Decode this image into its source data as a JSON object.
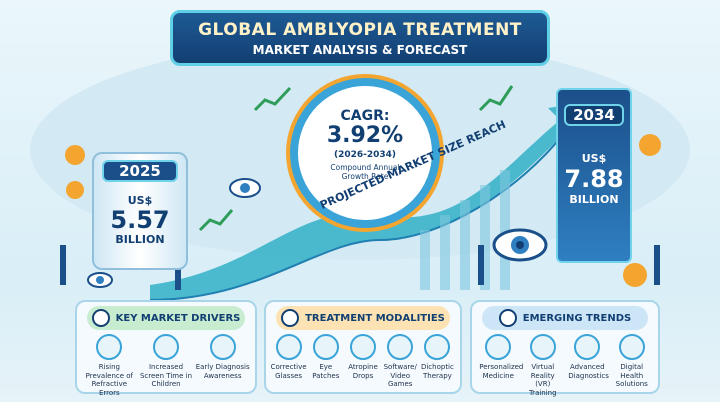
{
  "header": {
    "title": "GLOBAL AMBLYOPIA TREATMENT",
    "subtitle": "MARKET ANALYSIS & FORECAST"
  },
  "start": {
    "year": "2025",
    "currency": "US$",
    "value": "5.57",
    "unit": "BILLION"
  },
  "cagr": {
    "label": "CAGR:",
    "value": "3.92%",
    "period": "(2026-2034)",
    "caption_line1": "Compound Annual",
    "caption_line2": "Growth Rate"
  },
  "end": {
    "year": "2034",
    "currency": "US$",
    "value": "7.88",
    "unit": "BILLION"
  },
  "arrow_label": "PROJECTED MARKET SIZE REACH",
  "panels": [
    {
      "title": "KEY MARKET DRIVERS",
      "items": [
        "Rising Prevalence of Refractive Errors",
        "Increased Screen Time in Children",
        "Early Diagnosis Awareness"
      ]
    },
    {
      "title": "TREATMENT MODALITIES",
      "items": [
        "Corrective Glasses",
        "Eye Patches",
        "Atropine Drops",
        "Software/ Video Games",
        "Dichoptic Therapy"
      ]
    },
    {
      "title": "EMERGING TRENDS",
      "items": [
        "Personalized Medicine",
        "Virtual Reality (VR) Training",
        "Advanced Diagnostics",
        "Digital Health Solutions"
      ]
    }
  ]
}
